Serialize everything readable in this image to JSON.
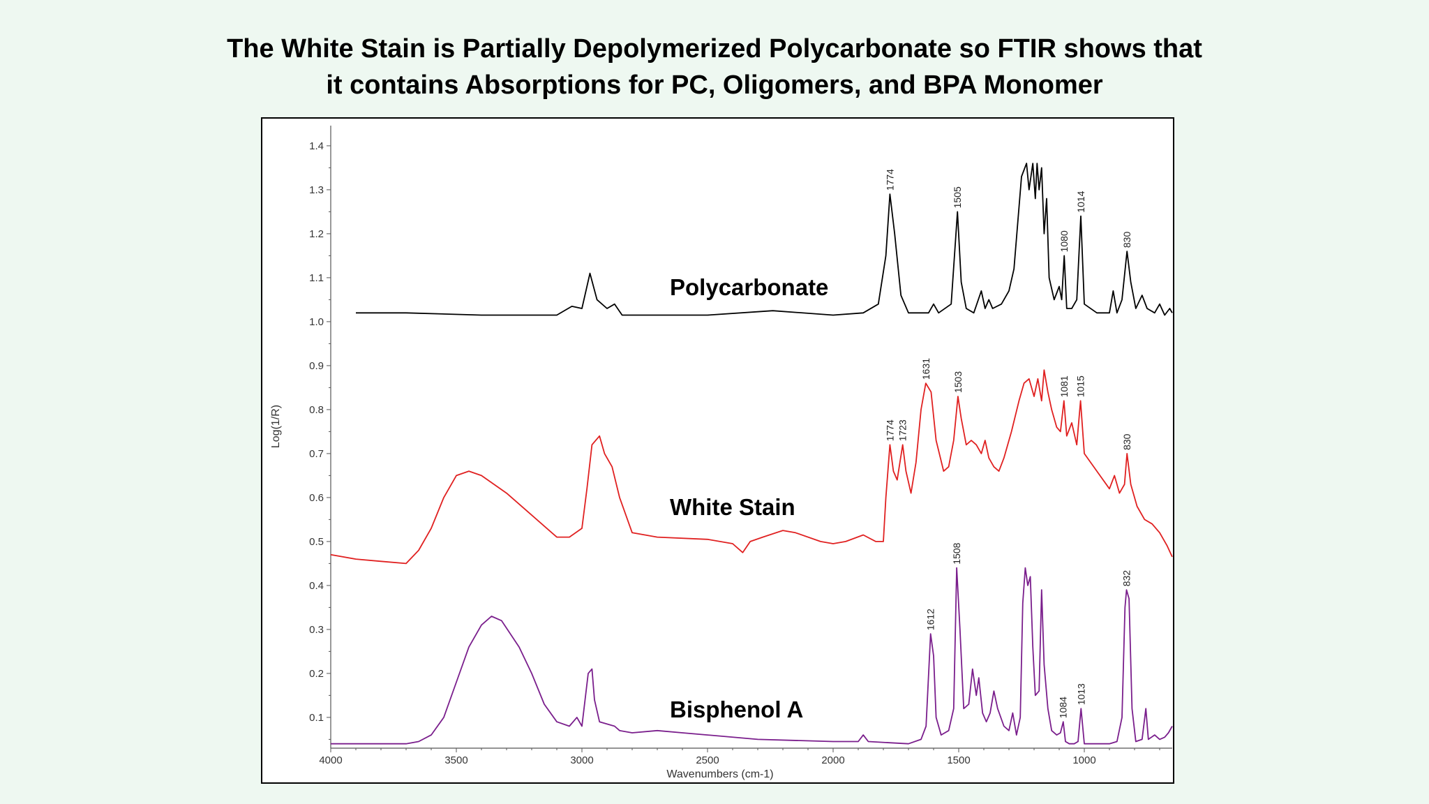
{
  "slide": {
    "title_line1": "The White Stain is Partially Depolymerized Polycarbonate so FTIR shows that",
    "title_line2": "it contains Absorptions for PC, Oligomers, and BPA Monomer"
  },
  "chart_data": {
    "type": "line",
    "xlabel": "Wavenumbers (cm-1)",
    "ylabel": "Log(1/R)",
    "xlim": [
      4000,
      650
    ],
    "x_reversed": true,
    "ylim": [
      0.03,
      1.43
    ],
    "xticks": [
      4000,
      3500,
      3000,
      2500,
      2000,
      1500,
      1000
    ],
    "yticks": [
      0.1,
      0.2,
      0.3,
      0.4,
      0.5,
      0.6,
      0.7,
      0.8,
      0.9,
      1.0,
      1.1,
      1.2,
      1.3,
      1.4
    ],
    "ytick_labels": [
      "0.1",
      "0.2",
      "0.3",
      "0.4",
      "0.5",
      "0.6",
      "0.7",
      "0.8",
      "0.9",
      "1.0",
      "1.1",
      "1.2",
      "1.3",
      "1.4"
    ],
    "grid": false,
    "series": [
      {
        "name": "Polycarbonate",
        "color": "#000000",
        "label_at": [
          2650,
          1.06
        ],
        "points": [
          [
            3900,
            1.02
          ],
          [
            3700,
            1.02
          ],
          [
            3400,
            1.015
          ],
          [
            3100,
            1.015
          ],
          [
            3040,
            1.035
          ],
          [
            3000,
            1.03
          ],
          [
            2968,
            1.11
          ],
          [
            2940,
            1.05
          ],
          [
            2900,
            1.03
          ],
          [
            2870,
            1.04
          ],
          [
            2840,
            1.015
          ],
          [
            2500,
            1.015
          ],
          [
            2240,
            1.025
          ],
          [
            2000,
            1.015
          ],
          [
            1880,
            1.02
          ],
          [
            1820,
            1.04
          ],
          [
            1790,
            1.15
          ],
          [
            1774,
            1.29
          ],
          [
            1755,
            1.2
          ],
          [
            1730,
            1.06
          ],
          [
            1700,
            1.02
          ],
          [
            1620,
            1.02
          ],
          [
            1600,
            1.04
          ],
          [
            1580,
            1.02
          ],
          [
            1530,
            1.04
          ],
          [
            1505,
            1.25
          ],
          [
            1490,
            1.09
          ],
          [
            1470,
            1.03
          ],
          [
            1440,
            1.02
          ],
          [
            1410,
            1.07
          ],
          [
            1395,
            1.03
          ],
          [
            1380,
            1.05
          ],
          [
            1365,
            1.03
          ],
          [
            1330,
            1.04
          ],
          [
            1300,
            1.07
          ],
          [
            1280,
            1.12
          ],
          [
            1250,
            1.33
          ],
          [
            1230,
            1.36
          ],
          [
            1220,
            1.3
          ],
          [
            1205,
            1.36
          ],
          [
            1195,
            1.28
          ],
          [
            1188,
            1.36
          ],
          [
            1180,
            1.3
          ],
          [
            1170,
            1.35
          ],
          [
            1160,
            1.2
          ],
          [
            1150,
            1.28
          ],
          [
            1140,
            1.1
          ],
          [
            1120,
            1.05
          ],
          [
            1100,
            1.08
          ],
          [
            1090,
            1.05
          ],
          [
            1080,
            1.15
          ],
          [
            1070,
            1.03
          ],
          [
            1050,
            1.03
          ],
          [
            1030,
            1.05
          ],
          [
            1014,
            1.24
          ],
          [
            1000,
            1.04
          ],
          [
            950,
            1.02
          ],
          [
            900,
            1.02
          ],
          [
            885,
            1.07
          ],
          [
            870,
            1.02
          ],
          [
            850,
            1.05
          ],
          [
            830,
            1.16
          ],
          [
            815,
            1.09
          ],
          [
            795,
            1.03
          ],
          [
            770,
            1.06
          ],
          [
            750,
            1.03
          ],
          [
            720,
            1.02
          ],
          [
            700,
            1.04
          ],
          [
            680,
            1.015
          ],
          [
            660,
            1.03
          ],
          [
            650,
            1.02
          ]
        ]
      },
      {
        "name": "White Stain",
        "color": "#e02020",
        "label_at": [
          2650,
          0.56
        ],
        "points": [
          [
            4000,
            0.47
          ],
          [
            3900,
            0.46
          ],
          [
            3800,
            0.455
          ],
          [
            3700,
            0.45
          ],
          [
            3650,
            0.48
          ],
          [
            3600,
            0.53
          ],
          [
            3550,
            0.6
          ],
          [
            3500,
            0.65
          ],
          [
            3450,
            0.66
          ],
          [
            3400,
            0.65
          ],
          [
            3300,
            0.61
          ],
          [
            3200,
            0.56
          ],
          [
            3100,
            0.51
          ],
          [
            3050,
            0.51
          ],
          [
            3000,
            0.53
          ],
          [
            2980,
            0.62
          ],
          [
            2960,
            0.72
          ],
          [
            2930,
            0.74
          ],
          [
            2910,
            0.7
          ],
          [
            2880,
            0.67
          ],
          [
            2850,
            0.6
          ],
          [
            2800,
            0.52
          ],
          [
            2700,
            0.51
          ],
          [
            2500,
            0.505
          ],
          [
            2400,
            0.495
          ],
          [
            2360,
            0.475
          ],
          [
            2330,
            0.5
          ],
          [
            2280,
            0.51
          ],
          [
            2200,
            0.525
          ],
          [
            2150,
            0.52
          ],
          [
            2050,
            0.5
          ],
          [
            2000,
            0.495
          ],
          [
            1950,
            0.5
          ],
          [
            1880,
            0.515
          ],
          [
            1830,
            0.5
          ],
          [
            1800,
            0.5
          ],
          [
            1790,
            0.6
          ],
          [
            1774,
            0.72
          ],
          [
            1760,
            0.66
          ],
          [
            1745,
            0.64
          ],
          [
            1723,
            0.72
          ],
          [
            1710,
            0.66
          ],
          [
            1690,
            0.61
          ],
          [
            1670,
            0.68
          ],
          [
            1650,
            0.8
          ],
          [
            1631,
            0.86
          ],
          [
            1610,
            0.84
          ],
          [
            1590,
            0.73
          ],
          [
            1560,
            0.66
          ],
          [
            1540,
            0.67
          ],
          [
            1520,
            0.73
          ],
          [
            1503,
            0.83
          ],
          [
            1490,
            0.78
          ],
          [
            1470,
            0.72
          ],
          [
            1450,
            0.73
          ],
          [
            1430,
            0.72
          ],
          [
            1410,
            0.7
          ],
          [
            1395,
            0.73
          ],
          [
            1380,
            0.69
          ],
          [
            1360,
            0.67
          ],
          [
            1340,
            0.66
          ],
          [
            1320,
            0.69
          ],
          [
            1290,
            0.75
          ],
          [
            1260,
            0.82
          ],
          [
            1240,
            0.86
          ],
          [
            1220,
            0.87
          ],
          [
            1200,
            0.83
          ],
          [
            1185,
            0.87
          ],
          [
            1170,
            0.82
          ],
          [
            1160,
            0.89
          ],
          [
            1145,
            0.84
          ],
          [
            1130,
            0.8
          ],
          [
            1110,
            0.76
          ],
          [
            1095,
            0.75
          ],
          [
            1081,
            0.82
          ],
          [
            1070,
            0.74
          ],
          [
            1050,
            0.77
          ],
          [
            1030,
            0.72
          ],
          [
            1015,
            0.82
          ],
          [
            1000,
            0.7
          ],
          [
            950,
            0.66
          ],
          [
            900,
            0.62
          ],
          [
            880,
            0.65
          ],
          [
            860,
            0.61
          ],
          [
            840,
            0.63
          ],
          [
            830,
            0.7
          ],
          [
            815,
            0.63
          ],
          [
            790,
            0.58
          ],
          [
            760,
            0.55
          ],
          [
            730,
            0.54
          ],
          [
            700,
            0.52
          ],
          [
            670,
            0.49
          ],
          [
            650,
            0.465
          ]
        ]
      },
      {
        "name": "Bisphenol A",
        "color": "#7a1e8c",
        "label_at": [
          2650,
          0.1
        ],
        "points": [
          [
            4000,
            0.04
          ],
          [
            3800,
            0.04
          ],
          [
            3700,
            0.04
          ],
          [
            3650,
            0.045
          ],
          [
            3600,
            0.06
          ],
          [
            3550,
            0.1
          ],
          [
            3500,
            0.18
          ],
          [
            3450,
            0.26
          ],
          [
            3400,
            0.31
          ],
          [
            3360,
            0.33
          ],
          [
            3320,
            0.32
          ],
          [
            3250,
            0.26
          ],
          [
            3200,
            0.2
          ],
          [
            3150,
            0.13
          ],
          [
            3100,
            0.09
          ],
          [
            3050,
            0.08
          ],
          [
            3020,
            0.1
          ],
          [
            3000,
            0.08
          ],
          [
            2975,
            0.2
          ],
          [
            2960,
            0.21
          ],
          [
            2950,
            0.14
          ],
          [
            2930,
            0.09
          ],
          [
            2900,
            0.085
          ],
          [
            2870,
            0.08
          ],
          [
            2850,
            0.07
          ],
          [
            2800,
            0.065
          ],
          [
            2700,
            0.07
          ],
          [
            2600,
            0.065
          ],
          [
            2500,
            0.06
          ],
          [
            2300,
            0.05
          ],
          [
            2000,
            0.045
          ],
          [
            1950,
            0.045
          ],
          [
            1900,
            0.045
          ],
          [
            1880,
            0.06
          ],
          [
            1860,
            0.045
          ],
          [
            1700,
            0.04
          ],
          [
            1650,
            0.05
          ],
          [
            1630,
            0.08
          ],
          [
            1612,
            0.29
          ],
          [
            1600,
            0.24
          ],
          [
            1590,
            0.1
          ],
          [
            1570,
            0.06
          ],
          [
            1540,
            0.07
          ],
          [
            1520,
            0.12
          ],
          [
            1508,
            0.44
          ],
          [
            1495,
            0.3
          ],
          [
            1480,
            0.12
          ],
          [
            1460,
            0.13
          ],
          [
            1445,
            0.21
          ],
          [
            1430,
            0.15
          ],
          [
            1420,
            0.19
          ],
          [
            1405,
            0.11
          ],
          [
            1390,
            0.09
          ],
          [
            1375,
            0.11
          ],
          [
            1360,
            0.16
          ],
          [
            1345,
            0.12
          ],
          [
            1320,
            0.08
          ],
          [
            1300,
            0.07
          ],
          [
            1285,
            0.11
          ],
          [
            1270,
            0.06
          ],
          [
            1255,
            0.1
          ],
          [
            1245,
            0.36
          ],
          [
            1235,
            0.44
          ],
          [
            1225,
            0.4
          ],
          [
            1215,
            0.42
          ],
          [
            1205,
            0.26
          ],
          [
            1195,
            0.15
          ],
          [
            1180,
            0.16
          ],
          [
            1170,
            0.39
          ],
          [
            1160,
            0.22
          ],
          [
            1145,
            0.12
          ],
          [
            1130,
            0.07
          ],
          [
            1110,
            0.06
          ],
          [
            1095,
            0.065
          ],
          [
            1084,
            0.09
          ],
          [
            1075,
            0.045
          ],
          [
            1060,
            0.04
          ],
          [
            1040,
            0.04
          ],
          [
            1025,
            0.045
          ],
          [
            1013,
            0.12
          ],
          [
            1000,
            0.04
          ],
          [
            950,
            0.04
          ],
          [
            900,
            0.04
          ],
          [
            870,
            0.045
          ],
          [
            850,
            0.1
          ],
          [
            838,
            0.35
          ],
          [
            832,
            0.39
          ],
          [
            822,
            0.37
          ],
          [
            810,
            0.12
          ],
          [
            795,
            0.045
          ],
          [
            770,
            0.05
          ],
          [
            755,
            0.12
          ],
          [
            745,
            0.05
          ],
          [
            720,
            0.06
          ],
          [
            700,
            0.05
          ],
          [
            680,
            0.055
          ],
          [
            665,
            0.065
          ],
          [
            650,
            0.08
          ]
        ]
      }
    ],
    "annotations": [
      {
        "text": "1774",
        "x": 1774,
        "y": 1.29
      },
      {
        "text": "1505",
        "x": 1505,
        "y": 1.25
      },
      {
        "text": "1080",
        "x": 1080,
        "y": 1.15
      },
      {
        "text": "1014",
        "x": 1014,
        "y": 1.24
      },
      {
        "text": "830",
        "x": 830,
        "y": 1.16
      },
      {
        "text": "1774",
        "x": 1774,
        "y": 0.72
      },
      {
        "text": "1723",
        "x": 1723,
        "y": 0.72
      },
      {
        "text": "1631",
        "x": 1631,
        "y": 0.86
      },
      {
        "text": "1503",
        "x": 1503,
        "y": 0.83
      },
      {
        "text": "1081",
        "x": 1081,
        "y": 0.82
      },
      {
        "text": "1015",
        "x": 1015,
        "y": 0.82
      },
      {
        "text": "830",
        "x": 830,
        "y": 0.7
      },
      {
        "text": "1612",
        "x": 1612,
        "y": 0.29
      },
      {
        "text": "1508",
        "x": 1508,
        "y": 0.44
      },
      {
        "text": "1084",
        "x": 1084,
        "y": 0.09
      },
      {
        "text": "1013",
        "x": 1013,
        "y": 0.12
      },
      {
        "text": "832",
        "x": 832,
        "y": 0.39
      }
    ]
  }
}
